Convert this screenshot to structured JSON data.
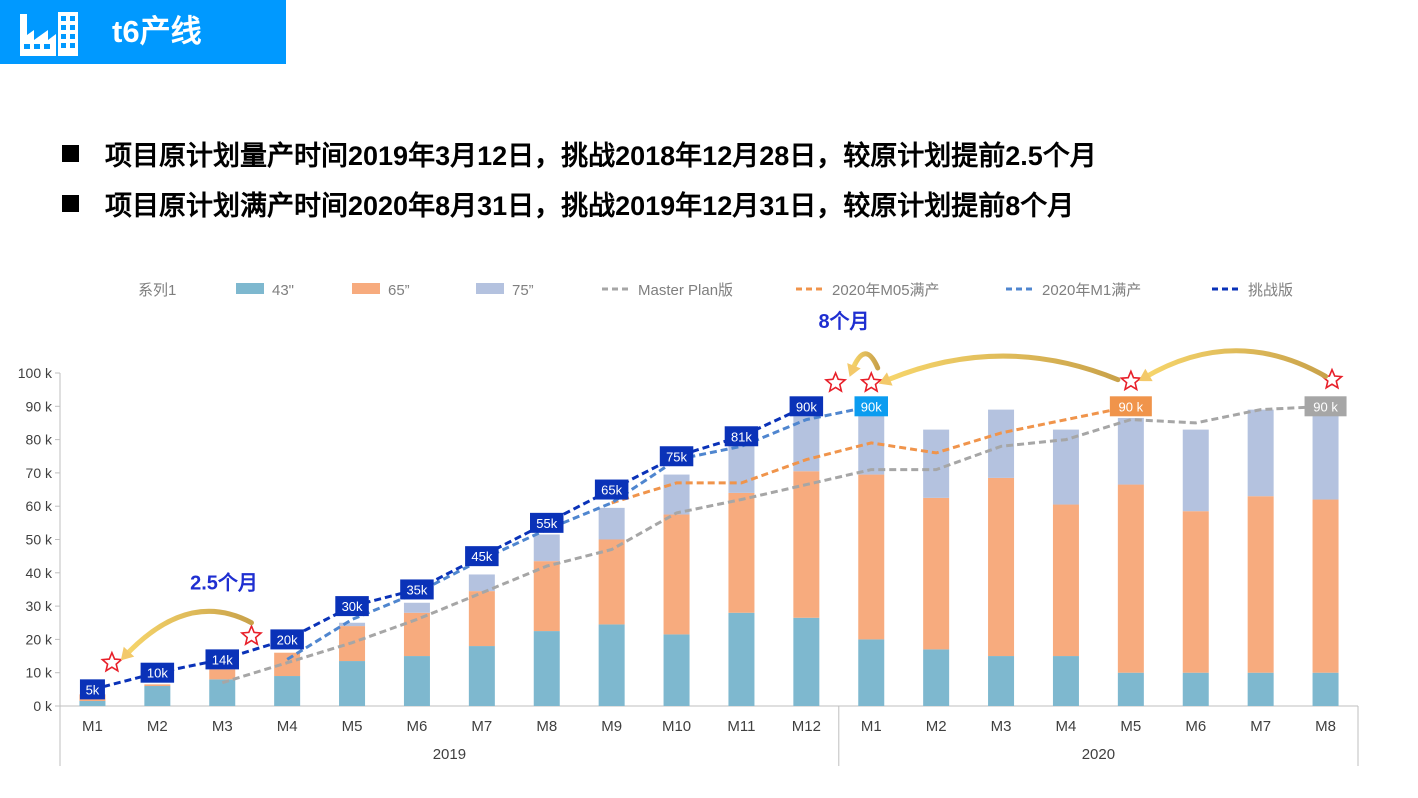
{
  "header": {
    "title": "t6产线",
    "icon": "factory-icon",
    "bar_color": "#0099ff"
  },
  "bullets": [
    "项目原计划量产时间2019年3月12日，挑战2018年12月28日，较原计划提前2.5个月",
    "项目原计划满产时间2020年8月31日，挑战2019年12月31日，较原计划提前8个月"
  ],
  "chart_data": {
    "type": "bar",
    "stacked": true,
    "categories": [
      "M1",
      "M2",
      "M3",
      "M4",
      "M5",
      "M6",
      "M7",
      "M8",
      "M9",
      "M10",
      "M11",
      "M12",
      "M1",
      "M2",
      "M3",
      "M4",
      "M5",
      "M6",
      "M7",
      "M8"
    ],
    "groups": [
      {
        "label": "2019",
        "count": 12
      },
      {
        "label": "2020",
        "count": 8
      }
    ],
    "ylim": [
      0,
      100
    ],
    "yticks": [
      "0 k",
      "10 k",
      "20 k",
      "30 k",
      "40 k",
      "50 k",
      "60 k",
      "70 k",
      "80 k",
      "90 k",
      "100 k"
    ],
    "legend_position": "top",
    "legend": [
      {
        "label": "系列1",
        "kind": "none"
      },
      {
        "label": "43\"",
        "kind": "bar",
        "color": "#7eb8cf"
      },
      {
        "label": "65”",
        "kind": "bar",
        "color": "#f7ab7e"
      },
      {
        "label": "75”",
        "kind": "bar",
        "color": "#b4c2df"
      },
      {
        "label": "Master Plan版",
        "kind": "line",
        "color": "#a6a6a6"
      },
      {
        "label": "2020年M05满产",
        "kind": "line",
        "color": "#f0944b"
      },
      {
        "label": "2020年M1满产",
        "kind": "line",
        "color": "#4f86cf"
      },
      {
        "label": "挑战版",
        "kind": "line",
        "color": "#0a32b8"
      }
    ],
    "bar_series": [
      {
        "name": "43\"",
        "color": "#7eb8cf",
        "values": [
          1.5,
          6,
          8,
          9,
          13.5,
          15,
          18,
          22.5,
          24.5,
          21.5,
          28,
          26.5,
          20,
          17,
          15,
          15,
          10,
          10,
          10,
          10
        ]
      },
      {
        "name": "65”",
        "color": "#f7ab7e",
        "values": [
          2,
          0.5,
          3,
          7,
          10.5,
          13,
          16.5,
          21,
          25.5,
          36,
          36,
          44,
          49.5,
          45.5,
          53.5,
          45.5,
          56.5,
          48.5,
          53,
          52
        ]
      },
      {
        "name": "75”",
        "color": "#b4c2df",
        "values": [
          0,
          0,
          0,
          0,
          1,
          3,
          5,
          8,
          9.5,
          12,
          15,
          16.5,
          19,
          20.5,
          20.5,
          22.5,
          20,
          24.5,
          26,
          28
        ]
      }
    ],
    "line_series": [
      {
        "name": "Master Plan版",
        "color": "#a6a6a6",
        "values": [
          null,
          null,
          7,
          13,
          19,
          26,
          34,
          42,
          47,
          58,
          62,
          66.5,
          71,
          71,
          78,
          80,
          86,
          85,
          89,
          90
        ]
      },
      {
        "name": "2020年M05满产",
        "color": "#f0944b",
        "values": [
          null,
          null,
          null,
          null,
          null,
          null,
          null,
          null,
          61,
          67,
          67,
          74,
          79,
          76,
          82,
          86,
          90,
          null,
          null,
          null
        ]
      },
      {
        "name": "2020年M1满产",
        "color": "#4f86cf",
        "values": [
          null,
          null,
          null,
          14,
          26,
          34,
          44,
          53,
          61,
          74,
          78,
          86,
          90,
          null,
          null,
          null,
          null,
          null,
          null,
          null
        ]
      },
      {
        "name": "挑战版",
        "color": "#0a32b8",
        "values": [
          5,
          10,
          14,
          20,
          30,
          35,
          45,
          55,
          65,
          75,
          81,
          90,
          null,
          null,
          null,
          null,
          null,
          null,
          null,
          null
        ]
      }
    ],
    "data_labels": [
      {
        "index": 0,
        "value": 5,
        "text": "5k",
        "color": "#0a32b8"
      },
      {
        "index": 1,
        "value": 10,
        "text": "10k",
        "color": "#0a32b8"
      },
      {
        "index": 2,
        "value": 14,
        "text": "14k",
        "color": "#0a32b8"
      },
      {
        "index": 3,
        "value": 20,
        "text": "20k",
        "color": "#0a32b8"
      },
      {
        "index": 4,
        "value": 30,
        "text": "30k",
        "color": "#0a32b8"
      },
      {
        "index": 5,
        "value": 35,
        "text": "35k",
        "color": "#0a32b8"
      },
      {
        "index": 6,
        "value": 45,
        "text": "45k",
        "color": "#0a32b8"
      },
      {
        "index": 7,
        "value": 55,
        "text": "55k",
        "color": "#0a32b8"
      },
      {
        "index": 8,
        "value": 65,
        "text": "65k",
        "color": "#0a32b8"
      },
      {
        "index": 9,
        "value": 75,
        "text": "75k",
        "color": "#0a32b8"
      },
      {
        "index": 10,
        "value": 81,
        "text": "81k",
        "color": "#0a32b8"
      },
      {
        "index": 11,
        "value": 90,
        "text": "90k",
        "color": "#0a32b8"
      },
      {
        "index": 12,
        "value": 90,
        "text": "90k",
        "color": "#0b9cf0"
      },
      {
        "index": 16,
        "value": 90,
        "text": "90 k",
        "color": "#f0944b"
      },
      {
        "index": 19,
        "value": 90,
        "text": "90 k",
        "color": "#a6a6a6"
      }
    ],
    "stars": [
      {
        "index": 0.3,
        "value": 13
      },
      {
        "index": 2.45,
        "value": 21
      },
      {
        "index": 11.45,
        "value": 97
      },
      {
        "index": 12,
        "value": 97
      },
      {
        "index": 16,
        "value": 97.5
      },
      {
        "index": 19.1,
        "value": 98
      }
    ],
    "annotations": [
      {
        "text": "2.5个月",
        "color": "#1f2fd1"
      },
      {
        "text": "8个月",
        "color": "#1f2fd1"
      }
    ]
  }
}
